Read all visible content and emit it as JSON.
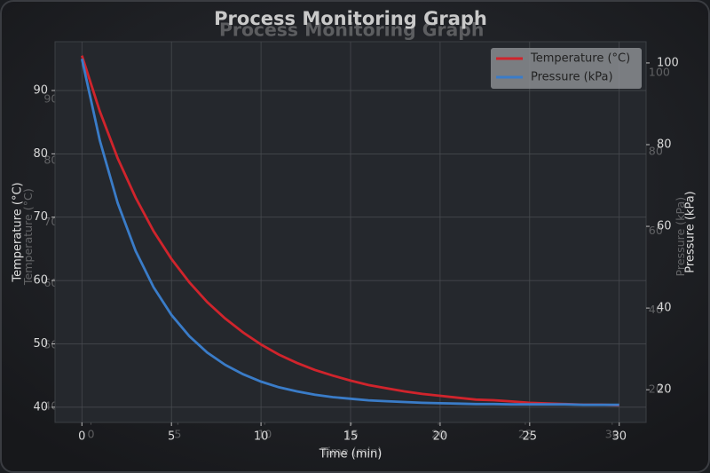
{
  "chart_data": {
    "type": "line",
    "title": "Process Monitoring Graph",
    "xlabel": "Time (min)",
    "ylabel": "Temperature (°C)",
    "y2label": "Pressure (kPa)",
    "x": [
      0,
      1,
      2,
      3,
      4,
      5,
      6,
      7,
      8,
      9,
      10,
      11,
      12,
      13,
      14,
      15,
      16,
      17,
      18,
      19,
      20,
      21,
      22,
      23,
      24,
      25,
      26,
      27,
      28,
      29,
      30
    ],
    "series": [
      {
        "name": "Temperature (°C)",
        "color": "#d0242c",
        "values": [
          95.5,
          86.7,
          79.3,
          73.1,
          67.8,
          63.4,
          59.7,
          56.6,
          54.0,
          51.8,
          49.9,
          48.3,
          47.0,
          45.9,
          45.0,
          44.2,
          43.5,
          43.0,
          42.5,
          42.1,
          41.8,
          41.5,
          41.2,
          41.1,
          40.9,
          40.7,
          40.6,
          40.5,
          40.4,
          40.4,
          40.3
        ]
      },
      {
        "name": "Pressure (kPa)",
        "color": "#3a7cc8",
        "axis": "y2",
        "values": [
          101.0,
          81.0,
          65.7,
          54.0,
          45.1,
          38.3,
          33.1,
          29.1,
          26.1,
          23.8,
          22.0,
          20.6,
          19.6,
          18.8,
          18.2,
          17.8,
          17.4,
          17.2,
          17.0,
          16.8,
          16.7,
          16.6,
          16.5,
          16.5,
          16.4,
          16.4,
          16.4,
          16.4,
          16.3,
          16.3,
          16.3
        ]
      }
    ],
    "xlim": [
      -1.5,
      31.5
    ],
    "xticks": [
      0,
      5,
      10,
      15,
      20,
      25,
      30
    ],
    "ylim": [
      37.6,
      97.7
    ],
    "yticks": [
      40,
      50,
      60,
      70,
      80,
      90
    ],
    "y2lim": [
      12,
      105.2
    ],
    "y2ticks": [
      20,
      40,
      60,
      80,
      100
    ],
    "grid": true,
    "legend": "upper right"
  }
}
